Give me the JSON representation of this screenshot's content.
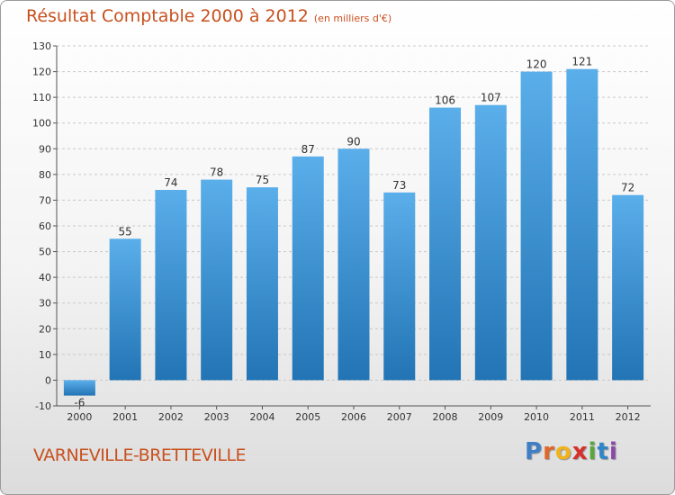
{
  "header": {
    "title": "Résultat Comptable 2000 à 2012",
    "subtitle": "(en milliers d'€)"
  },
  "footer": {
    "commune": "VARNEVILLE-BRETTEVILLE",
    "logo_letters": [
      "P",
      "r",
      "o",
      "x",
      "i",
      "t",
      "i"
    ],
    "logo_colors": [
      "#3f7fc8",
      "#e0662a",
      "#f0b31b",
      "#d6302b",
      "#57a83a",
      "#2f86c9",
      "#8c4aa8"
    ]
  },
  "colors": {
    "bar_top": "#5aaeea",
    "bar_bottom": "#2274b4",
    "axis": "#555555",
    "text": "#333333"
  },
  "chart_data": {
    "type": "bar",
    "categories": [
      "2000",
      "2001",
      "2002",
      "2003",
      "2004",
      "2005",
      "2006",
      "2007",
      "2008",
      "2009",
      "2010",
      "2011",
      "2012"
    ],
    "values": [
      -6,
      55,
      74,
      78,
      75,
      87,
      90,
      73,
      106,
      107,
      120,
      121,
      72
    ],
    "ylim": [
      -10,
      130
    ],
    "yticks": [
      -10,
      0,
      10,
      20,
      30,
      40,
      50,
      60,
      70,
      80,
      90,
      100,
      110,
      120,
      130
    ],
    "grid": true,
    "legend": "none"
  }
}
